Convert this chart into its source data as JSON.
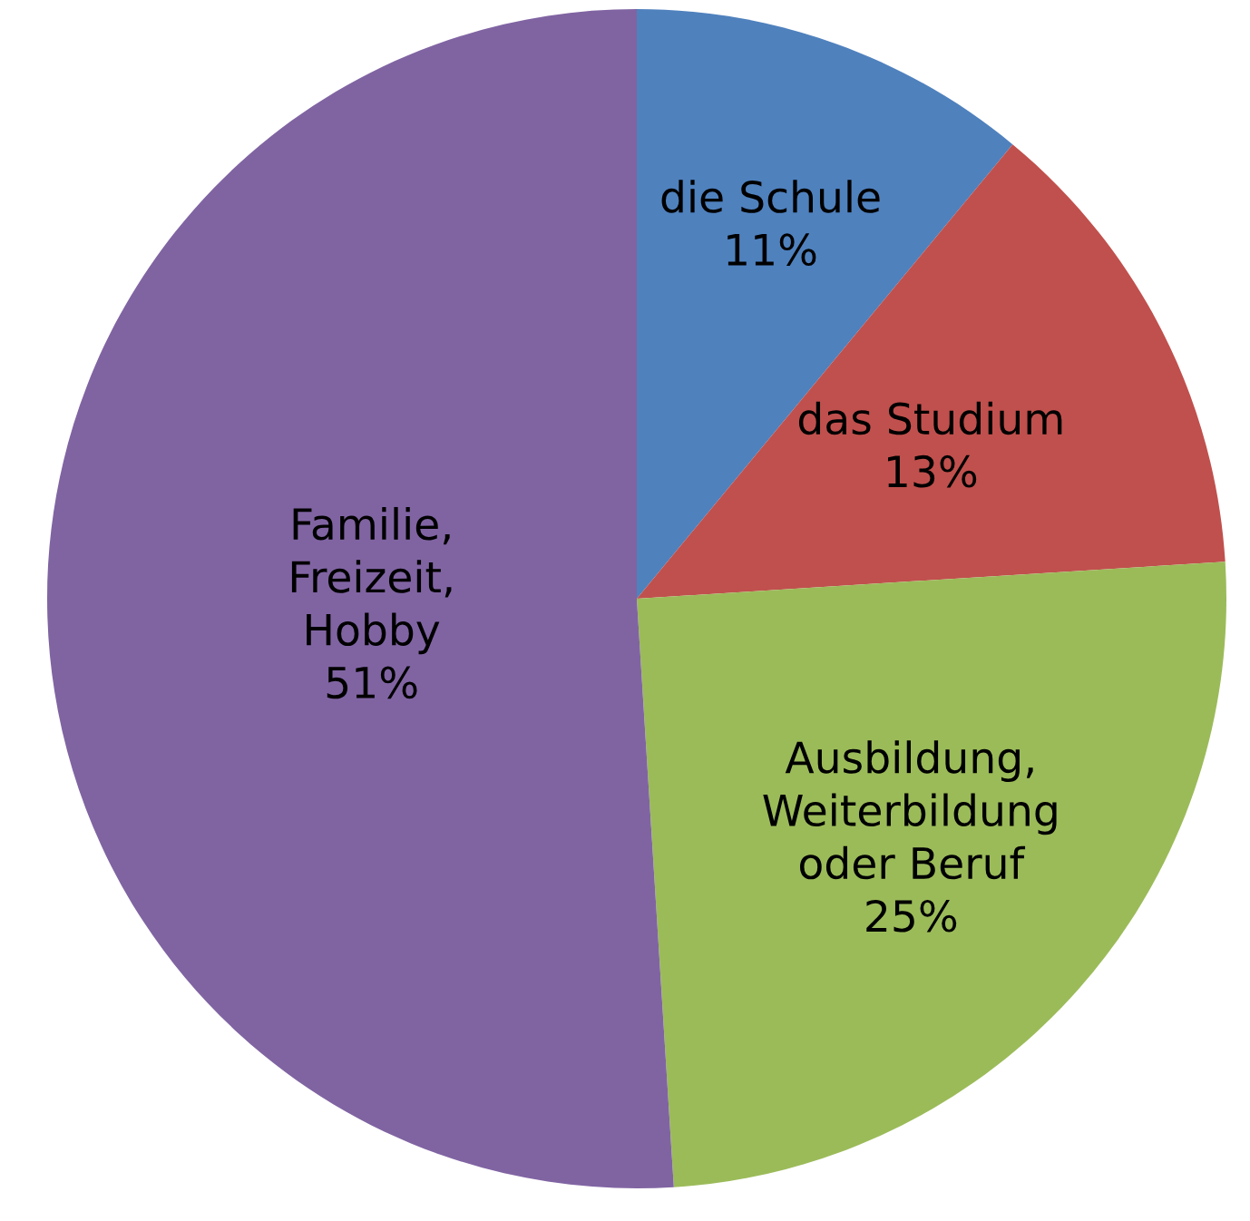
{
  "chart_data": {
    "type": "pie",
    "categories": [
      "die Schule",
      "das Studium",
      "Ausbildung,\nWeiterbildung\noder Beruf",
      "Familie,\nFreizeit,\nHobby"
    ],
    "values": [
      11,
      13,
      25,
      51
    ],
    "value_labels": [
      "11%",
      "13%",
      "25%",
      "51%"
    ],
    "colors": [
      "#4f81bd",
      "#c0504d",
      "#9bbb59",
      "#8064a2"
    ],
    "legend": false
  }
}
